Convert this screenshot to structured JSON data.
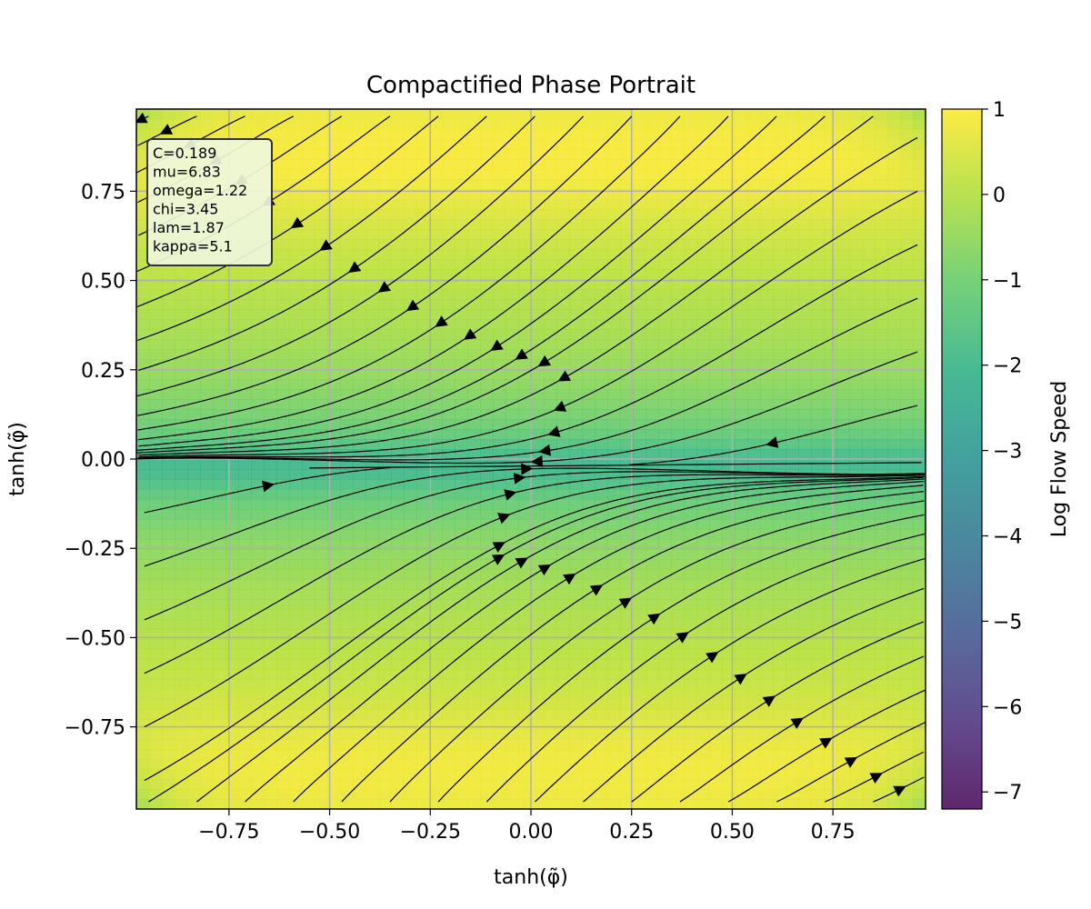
{
  "chart_data": {
    "type": "heatmap",
    "subtype": "contourf-with-streamlines",
    "title": "Compactified Phase Portrait",
    "xlabel": "tanh(φ̃)",
    "ylabel": "tanh(φ̃)",
    "xlim": [
      -0.98,
      0.98
    ],
    "ylim": [
      -0.98,
      0.98
    ],
    "xticks": [
      -0.75,
      -0.5,
      -0.25,
      0.0,
      0.25,
      0.5,
      0.75
    ],
    "xtick_labels": [
      "−0.75",
      "−0.50",
      "−0.25",
      "0.00",
      "0.25",
      "0.50",
      "0.75"
    ],
    "yticks": [
      -0.75,
      -0.5,
      -0.25,
      0.0,
      0.25,
      0.5,
      0.75
    ],
    "ytick_labels": [
      "−0.75",
      "−0.50",
      "−0.25",
      "0.00",
      "0.25",
      "0.50",
      "0.75"
    ],
    "grid": true,
    "colormap": "viridis",
    "colorbar": {
      "label": "Log Flow Speed",
      "range": [
        -7.2,
        1.0
      ],
      "ticks": [
        1,
        0,
        -1,
        -2,
        -3,
        -4,
        -5,
        -6,
        -7
      ],
      "tick_labels": [
        "1",
        "0",
        "−1",
        "−2",
        "−3",
        "−4",
        "−5",
        "−6",
        "−7"
      ]
    },
    "annotation_box": {
      "lines": [
        "C=0.189",
        "mu=6.83",
        "omega=1.22",
        "chi=3.45",
        "lam=1.87",
        "kappa=5.1"
      ],
      "background": "#f0f8e0",
      "border": "#333333"
    },
    "field_description": {
      "slow_line_y": -0.02,
      "speed_max_near": [
        0.0,
        0.85
      ],
      "streamline_color": "#000000"
    }
  }
}
